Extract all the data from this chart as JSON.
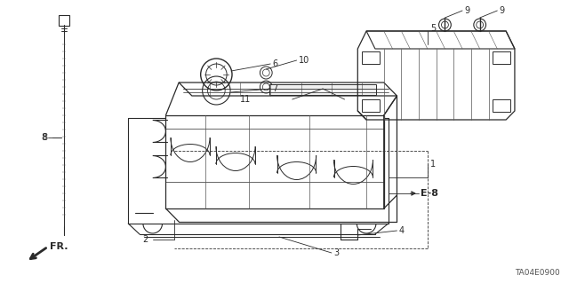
{
  "bg_color": "#ffffff",
  "lc": "#2a2a2a",
  "diagram_code": "TA04E0900",
  "fig_w": 6.4,
  "fig_h": 3.19,
  "dpi": 100
}
